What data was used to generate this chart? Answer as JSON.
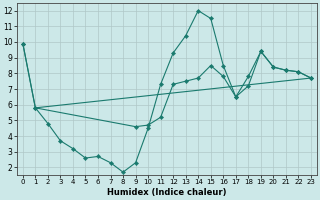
{
  "xlabel": "Humidex (Indice chaleur)",
  "xlim": [
    -0.5,
    23.5
  ],
  "ylim": [
    1.5,
    12.5
  ],
  "yticks": [
    2,
    3,
    4,
    5,
    6,
    7,
    8,
    9,
    10,
    11,
    12
  ],
  "xticks": [
    0,
    1,
    2,
    3,
    4,
    5,
    6,
    7,
    8,
    9,
    10,
    11,
    12,
    13,
    14,
    15,
    16,
    17,
    18,
    19,
    20,
    21,
    22,
    23
  ],
  "background_color": "#cce8e8",
  "grid_color": "#b0c8c8",
  "line_color": "#1a7a6e",
  "series1_x": [
    0,
    1,
    2,
    3,
    4,
    5,
    6,
    7,
    8,
    9,
    10,
    11,
    12,
    13,
    14,
    15,
    16,
    17,
    18,
    19,
    20,
    21,
    22,
    23
  ],
  "series1_y": [
    9.9,
    5.8,
    4.8,
    3.7,
    3.2,
    2.6,
    2.7,
    2.3,
    1.7,
    2.3,
    4.5,
    7.3,
    9.3,
    10.4,
    12.0,
    11.5,
    8.5,
    6.5,
    7.8,
    9.4,
    8.4,
    8.2,
    8.1,
    7.7
  ],
  "series2_x": [
    0,
    1,
    9,
    10,
    11,
    12,
    13,
    14,
    15,
    16,
    17,
    18,
    19,
    20,
    21,
    22,
    23
  ],
  "series2_y": [
    9.9,
    5.8,
    4.6,
    4.7,
    5.2,
    7.3,
    7.5,
    7.7,
    8.5,
    7.8,
    6.5,
    7.2,
    9.4,
    8.4,
    8.2,
    8.1,
    7.7
  ],
  "series3_x": [
    1,
    23
  ],
  "series3_y": [
    5.8,
    7.7
  ]
}
